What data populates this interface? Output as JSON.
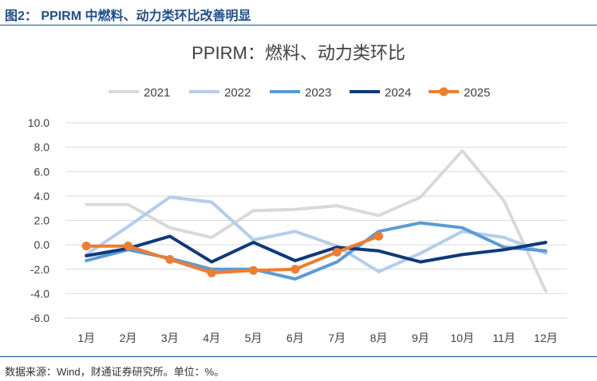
{
  "figure": {
    "caption": "图2： PPIRM 中燃料、动力类环比改善明显",
    "source": "数据来源：Wind，财通证券研究所。单位：%。"
  },
  "chart_data": {
    "type": "line",
    "title": "PPIRM：燃料、动力类环比",
    "categories": [
      "1月",
      "2月",
      "3月",
      "4月",
      "5月",
      "6月",
      "7月",
      "8月",
      "9月",
      "10月",
      "11月",
      "12月"
    ],
    "ylim": [
      -6,
      10
    ],
    "yticks": [
      "10.0",
      "8.0",
      "6.0",
      "4.0",
      "2.0",
      "0.0",
      "-2.0",
      "-4.0",
      "-6.0"
    ],
    "grid": true,
    "legend_position": "top",
    "series": [
      {
        "name": "2021",
        "color": "#d9d9d9",
        "marker": false,
        "values": [
          3.3,
          3.3,
          1.4,
          0.6,
          2.8,
          2.9,
          3.2,
          2.4,
          3.9,
          7.7,
          3.6,
          -3.8
        ]
      },
      {
        "name": "2022",
        "color": "#b4cdee",
        "marker": false,
        "values": [
          -0.8,
          1.5,
          3.9,
          3.5,
          0.4,
          1.1,
          -0.1,
          -2.2,
          -0.7,
          1.1,
          0.6,
          -0.7
        ]
      },
      {
        "name": "2023",
        "color": "#5b9bd5",
        "marker": false,
        "values": [
          -1.3,
          -0.4,
          -1.1,
          -2.0,
          -2.0,
          -2.8,
          -1.4,
          1.1,
          1.8,
          1.4,
          -0.2,
          -0.5
        ]
      },
      {
        "name": "2024",
        "color": "#0e3a7a",
        "marker": false,
        "values": [
          -0.9,
          -0.3,
          0.7,
          -1.4,
          0.2,
          -1.3,
          -0.2,
          -0.5,
          -1.4,
          -0.8,
          -0.4,
          0.2
        ]
      },
      {
        "name": "2025",
        "color": "#ed7d31",
        "marker": true,
        "values": [
          -0.1,
          -0.1,
          -1.2,
          -2.3,
          -2.1,
          -2.0,
          -0.6,
          0.7,
          null,
          null,
          null,
          null
        ]
      }
    ]
  }
}
